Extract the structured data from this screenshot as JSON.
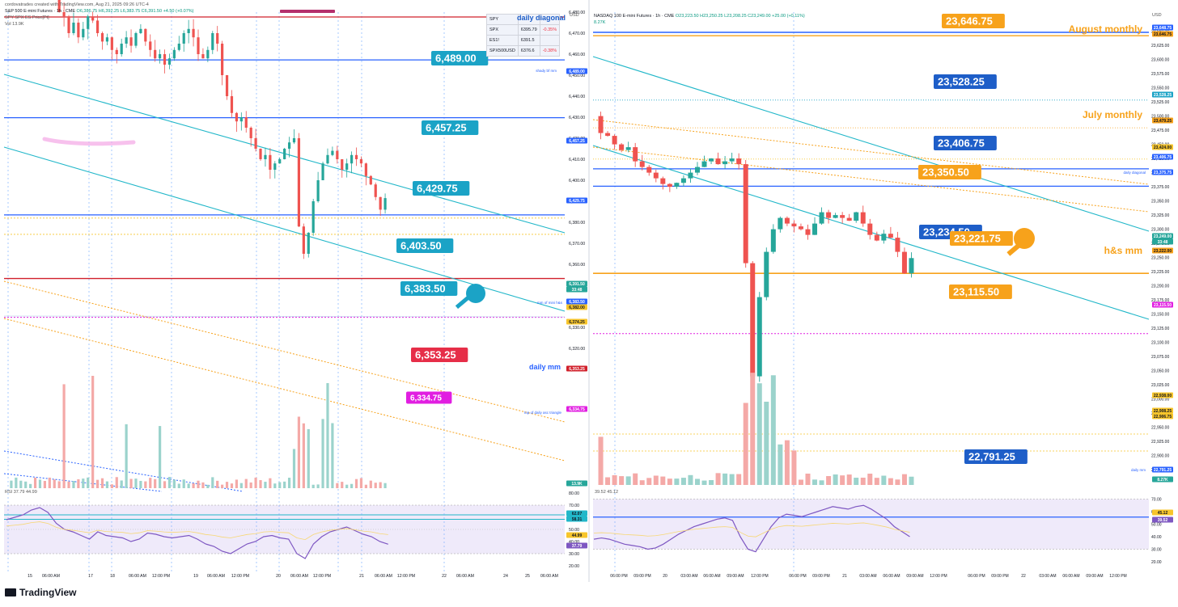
{
  "attribution": "cordovatrades created with TradingView.com, Aug 21, 2025 09:26 UTC-4",
  "footer_brand": "TradingView",
  "left_chart": {
    "symbol_line": "S&P 500 E-mini Futures · 1h · CME",
    "ohlc": "O6,386.75 H6,392.25 L6,383.75 C6,391.50 +4.50 (+0.07%)",
    "indicator1": "SPY SPX ES Price[Pt]",
    "volume_label": "Vol 13.9K",
    "rsi_label": "RSI 37.79 44.99",
    "currency": "USD",
    "corner_annotation": "daily diagonal",
    "watchlist": [
      {
        "symbol": "SPY",
        "price": "",
        "change": ""
      },
      {
        "symbol": "SPX",
        "price": "6395.79",
        "change": "-0.35%"
      },
      {
        "symbol": "ES1!",
        "price": "6391.5",
        "change": ""
      },
      {
        "symbol": "SPX500USD",
        "price": "6376.6",
        "change": "-0.38%"
      }
    ],
    "y_ticks": [
      "6,510.00",
      "6,500.00",
      "6,490.00",
      "6,480.00",
      "6,470.00",
      "6,460.00",
      "6,450.00",
      "6,440.00",
      "6,430.00",
      "6,420.00",
      "6,410.00",
      "6,400.00",
      "6,390.00",
      "6,380.00",
      "6,370.00",
      "6,360.00",
      "6,350.00",
      "6,340.00",
      "6,330.00",
      "6,320.00",
      "6,310.00"
    ],
    "rsi_ticks": [
      "80.00",
      "70.00",
      "60.00",
      "50.00",
      "40.00",
      "30.00",
      "20.00"
    ],
    "x_ticks": [
      "15",
      "06:00 AM",
      "17",
      "18",
      "06:00 AM",
      "12:00 PM",
      "19",
      "06:00 AM",
      "12:00 PM",
      "20",
      "06:00 AM",
      "12:00 PM",
      "21",
      "06:00 AM",
      "12:00 PM",
      "22",
      "06:00 AM",
      "24",
      "25",
      "06:00 AM"
    ],
    "level_tags": [
      "6,489.00",
      "6,457.25",
      "6,429.75",
      "6,403.50",
      "6,383.50",
      "6,353.25",
      "6,334.75"
    ],
    "level_notes": [
      "shady bf mm",
      "mm of mini h&s",
      "daily mm",
      "top of daily asc triangle"
    ],
    "price_labels": [
      "6,489.00",
      "6,457.25",
      "6,429.75",
      "6,391.50",
      "33:48",
      "6,383.50",
      "6,382.00",
      "6,374.25",
      "6,353.25",
      "6,334.75",
      "13.9K",
      "62.07",
      "58.31",
      "44.99",
      "37.79"
    ]
  },
  "right_chart": {
    "symbol_line": "NASDAQ 100 E-mini Futures · 1h · CME",
    "ohlc": "O23,223.50 H23,250.25 L23,208.25 C23,249.00 +25.00 (+0.11%)",
    "volume_label": "8.27K",
    "rsi_label": "39.52 45.12",
    "currency": "USD",
    "y_ticks": [
      "23,650.00",
      "23,625.00",
      "23,600.00",
      "23,575.00",
      "23,550.00",
      "23,525.00",
      "23,500.00",
      "23,475.00",
      "23,450.00",
      "23,425.00",
      "23,400.00",
      "23,375.00",
      "23,350.00",
      "23,325.00",
      "23,300.00",
      "23,275.00",
      "23,250.00",
      "23,225.00",
      "23,200.00",
      "23,175.00",
      "23,150.00",
      "23,125.00",
      "23,100.00",
      "23,075.00",
      "23,050.00",
      "23,025.00",
      "23,000.00",
      "22,975.00",
      "22,950.00",
      "22,925.00",
      "22,900.00",
      "22,875.00",
      "22,850.00",
      "22,825.00",
      "22,800.00",
      "22,775.00"
    ],
    "rsi_ticks": [
      "70.00",
      "60.00",
      "50.00",
      "40.00",
      "30.00",
      "20.00"
    ],
    "x_ticks": [
      "06:00 PM",
      "09:00 PM",
      "20",
      "03:00 AM",
      "06:00 AM",
      "09:00 AM",
      "12:00 PM",
      "06:00 PM",
      "09:00 PM",
      "21",
      "03:00 AM",
      "06:00 AM",
      "09:00 AM",
      "12:00 PM",
      "06:00 PM",
      "09:00 PM",
      "22",
      "03:00 AM",
      "06:00 AM",
      "09:00 AM",
      "12:00 PM"
    ],
    "level_tags": [
      "23,646.75",
      "23,528.25",
      "23,406.75",
      "23,350.50",
      "23,234.50",
      "23,221.75",
      "23,115.50",
      "22,791.25"
    ],
    "notes": [
      "August monthly",
      "July monthly",
      "h&s mm"
    ],
    "small_notes": [
      "daily diagonal",
      "daily mm"
    ],
    "price_labels": [
      "23,648.75",
      "23,646.75",
      "23,528.25",
      "23,479.25",
      "23,424.00",
      "23,406.75",
      "23,375.75",
      "23,249.00",
      "33:48",
      "23,222.00",
      "23,115.50",
      "22,938.00",
      "22,908.25",
      "22,906.75",
      "22,791.25",
      "8.27K",
      "45.12",
      "39.52"
    ]
  },
  "colors": {
    "up": "#26a69a",
    "down": "#ef5350",
    "blue_tag": "#1e5ec8",
    "teal_tag": "#1ba3c6",
    "orange": "#f7a21b",
    "red_line": "#d1202b",
    "magenta": "#e11ee1",
    "teal_line": "#22b7c9"
  }
}
